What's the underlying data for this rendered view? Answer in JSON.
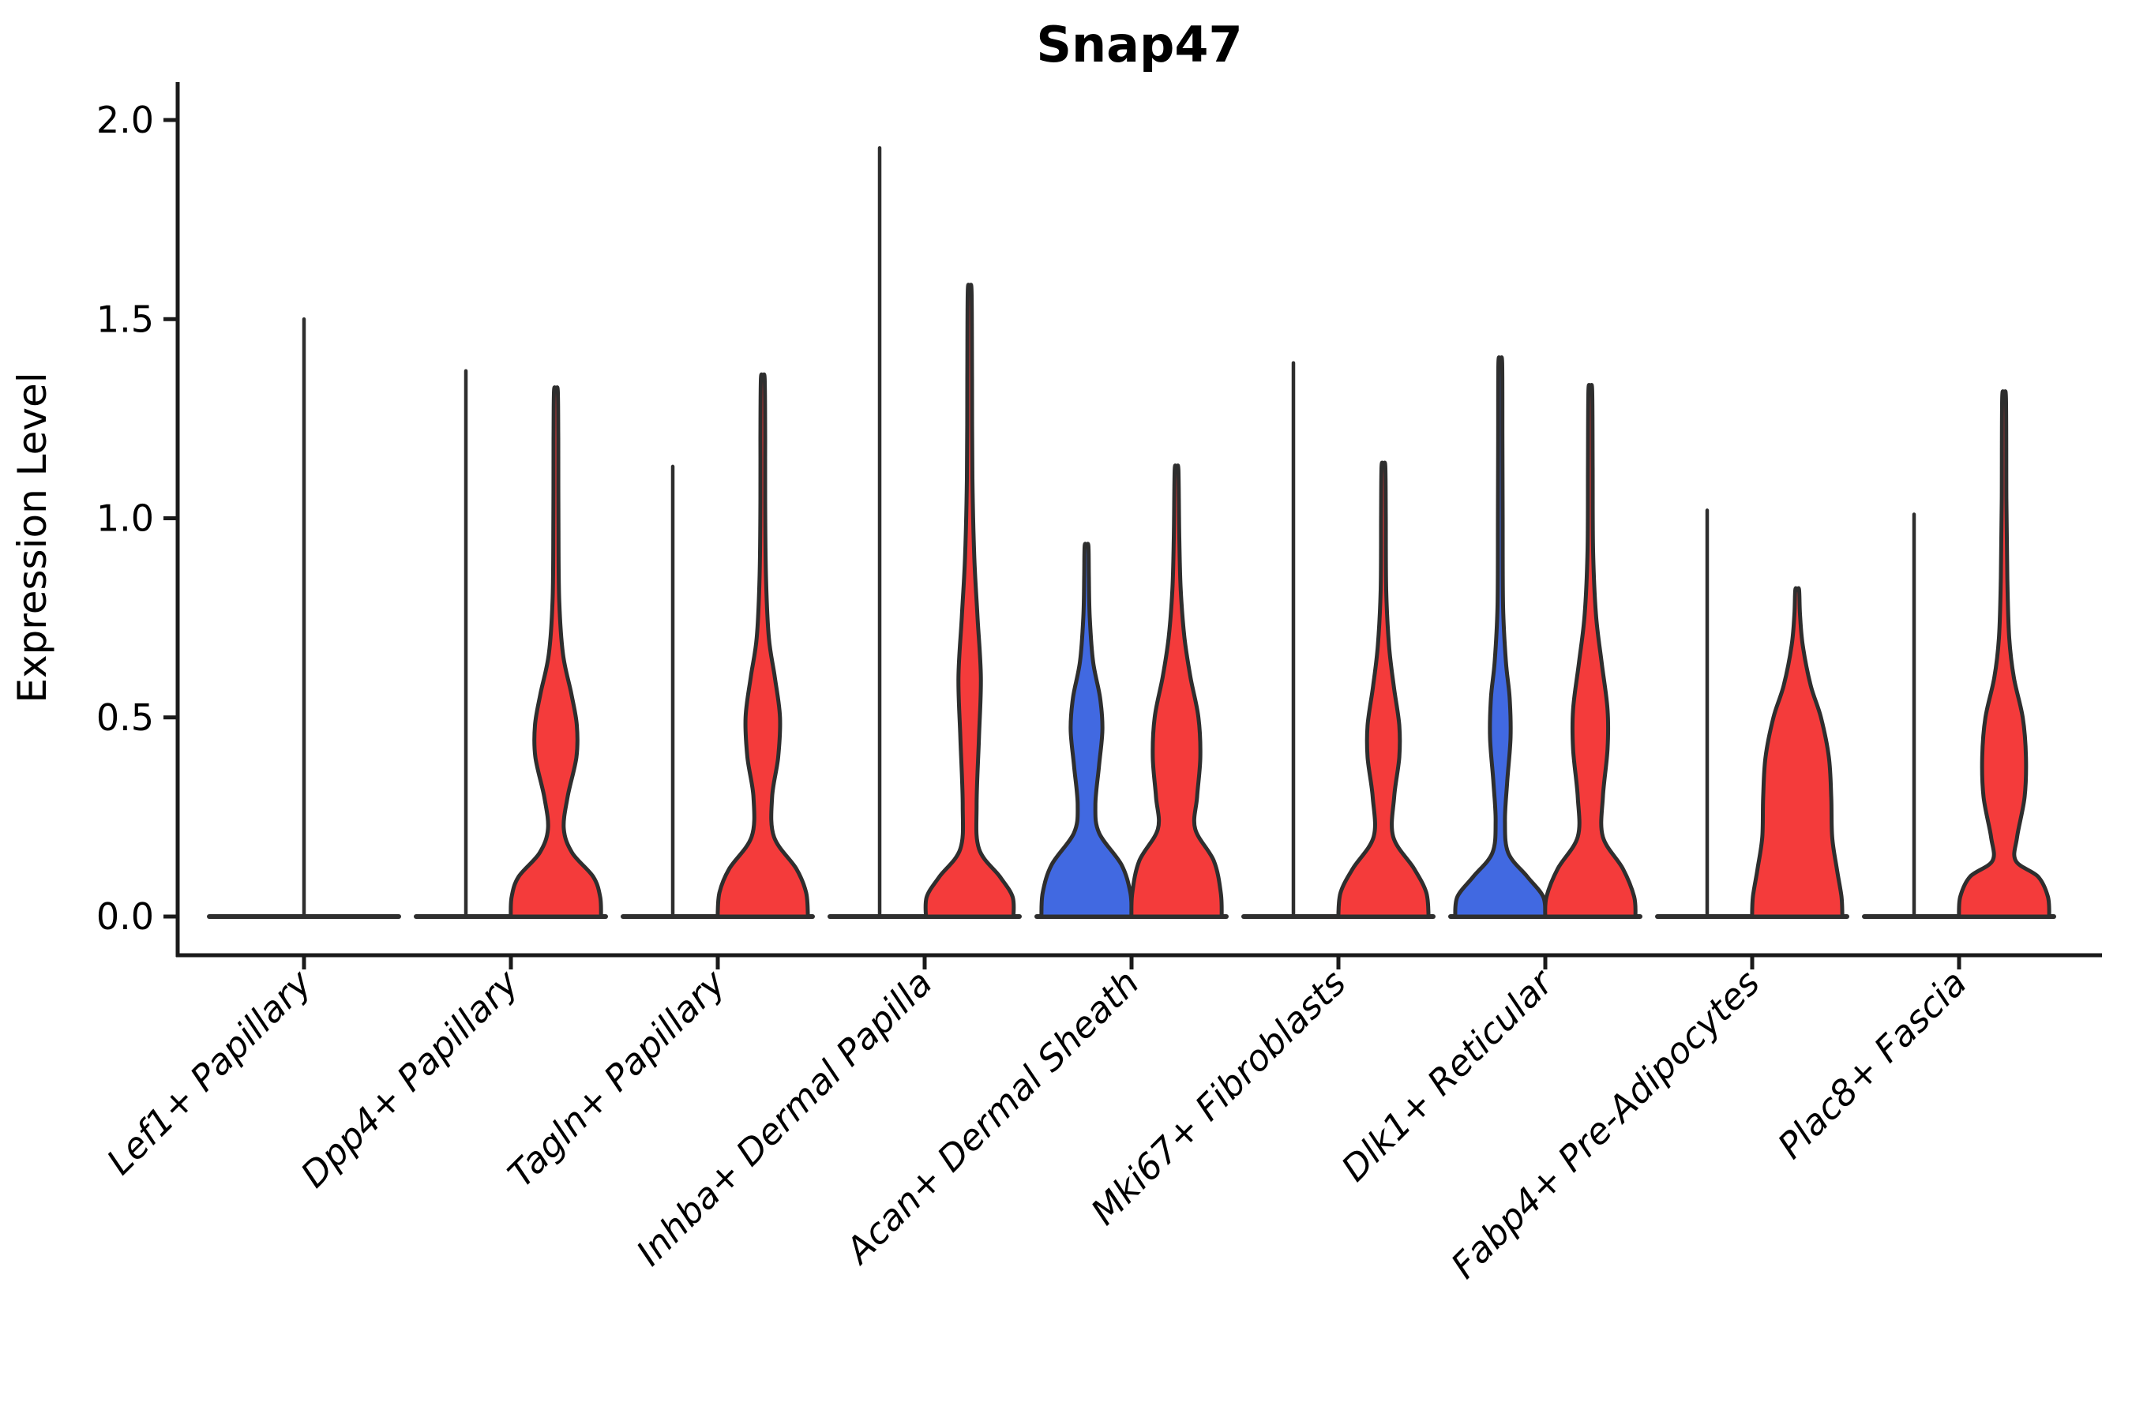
{
  "title": "Snap47",
  "chart_data": {
    "type": "violin",
    "title": "Snap47",
    "ylabel": "Expression Level",
    "ylim": [
      0,
      2.0
    ],
    "grid": false,
    "legend": "none",
    "yticks": [
      {
        "value": 0.0,
        "label": "0.0"
      },
      {
        "value": 0.5,
        "label": "0.5"
      },
      {
        "value": 1.0,
        "label": "1.0"
      },
      {
        "value": 1.5,
        "label": "1.5"
      },
      {
        "value": 2.0,
        "label": "2.0"
      }
    ],
    "colors": {
      "blue": "#4169e1",
      "red": "#f43b3b",
      "outline": "#2e2e2e",
      "axis": "#1a1a1a"
    },
    "series_names": [
      "blue",
      "red"
    ],
    "categories": [
      {
        "label": "Lef1+ Papillary",
        "blue": {
          "kind": "spike",
          "max": 1.5,
          "offset": 0
        },
        "red": {
          "kind": "none"
        }
      },
      {
        "label": "Dpp4+ Papillary",
        "blue": {
          "kind": "spike",
          "max": 1.37,
          "offset": -57
        },
        "red": {
          "kind": "violin",
          "max": 1.32,
          "offset": 57,
          "profile": [
            [
              0,
              0.97
            ],
            [
              0.05,
              0.95
            ],
            [
              0.1,
              0.8
            ],
            [
              0.16,
              0.35
            ],
            [
              0.22,
              0.17
            ],
            [
              0.3,
              0.25
            ],
            [
              0.4,
              0.44
            ],
            [
              0.48,
              0.45
            ],
            [
              0.56,
              0.33
            ],
            [
              0.66,
              0.15
            ],
            [
              0.8,
              0.07
            ],
            [
              1.0,
              0.055
            ],
            [
              1.2,
              0.05
            ],
            [
              1.32,
              0.04
            ]
          ]
        }
      },
      {
        "label": "Tagln+ Papillary",
        "blue": {
          "kind": "spike",
          "max": 1.13,
          "offset": -57
        },
        "red": {
          "kind": "violin",
          "max": 1.35,
          "offset": 57,
          "profile": [
            [
              0,
              0.97
            ],
            [
              0.06,
              0.93
            ],
            [
              0.12,
              0.72
            ],
            [
              0.2,
              0.24
            ],
            [
              0.3,
              0.2
            ],
            [
              0.4,
              0.33
            ],
            [
              0.5,
              0.37
            ],
            [
              0.6,
              0.26
            ],
            [
              0.7,
              0.13
            ],
            [
              0.85,
              0.07
            ],
            [
              1.05,
              0.05
            ],
            [
              1.2,
              0.05
            ],
            [
              1.35,
              0.04
            ]
          ]
        }
      },
      {
        "label": "Inhba+ Dermal Papilla",
        "blue": {
          "kind": "spike",
          "max": 1.93,
          "offset": -57
        },
        "red": {
          "kind": "violin",
          "max": 1.57,
          "offset": 57,
          "profile": [
            [
              0,
              0.94
            ],
            [
              0.05,
              0.92
            ],
            [
              0.1,
              0.65
            ],
            [
              0.17,
              0.2
            ],
            [
              0.28,
              0.15
            ],
            [
              0.45,
              0.2
            ],
            [
              0.6,
              0.24
            ],
            [
              0.75,
              0.17
            ],
            [
              0.9,
              0.1
            ],
            [
              1.1,
              0.06
            ],
            [
              1.35,
              0.05
            ],
            [
              1.57,
              0.04
            ]
          ]
        }
      },
      {
        "label": "Acan+ Dermal Sheath",
        "blue": {
          "kind": "violin",
          "max": 0.93,
          "offset": -57,
          "profile": [
            [
              0,
              0.97
            ],
            [
              0.06,
              0.94
            ],
            [
              0.13,
              0.75
            ],
            [
              0.21,
              0.27
            ],
            [
              0.28,
              0.19
            ],
            [
              0.38,
              0.27
            ],
            [
              0.47,
              0.34
            ],
            [
              0.55,
              0.29
            ],
            [
              0.64,
              0.14
            ],
            [
              0.75,
              0.07
            ],
            [
              0.85,
              0.05
            ],
            [
              0.93,
              0.04
            ]
          ]
        },
        "red": {
          "kind": "violin",
          "max": 1.12,
          "offset": 57,
          "profile": [
            [
              0,
              0.97
            ],
            [
              0.06,
              0.95
            ],
            [
              0.14,
              0.8
            ],
            [
              0.22,
              0.4
            ],
            [
              0.3,
              0.44
            ],
            [
              0.4,
              0.51
            ],
            [
              0.5,
              0.47
            ],
            [
              0.6,
              0.3
            ],
            [
              0.7,
              0.17
            ],
            [
              0.82,
              0.09
            ],
            [
              0.95,
              0.06
            ],
            [
              1.12,
              0.04
            ]
          ]
        }
      },
      {
        "label": "Mki67+ Fibroblasts",
        "blue": {
          "kind": "spike",
          "max": 1.39,
          "offset": -57
        },
        "red": {
          "kind": "violin",
          "max": 1.13,
          "offset": 57,
          "profile": [
            [
              0,
              0.97
            ],
            [
              0.06,
              0.92
            ],
            [
              0.12,
              0.66
            ],
            [
              0.2,
              0.21
            ],
            [
              0.3,
              0.23
            ],
            [
              0.4,
              0.34
            ],
            [
              0.48,
              0.34
            ],
            [
              0.58,
              0.22
            ],
            [
              0.68,
              0.12
            ],
            [
              0.82,
              0.06
            ],
            [
              1.0,
              0.05
            ],
            [
              1.13,
              0.04
            ]
          ]
        }
      },
      {
        "label": "Dlk1+ Reticular",
        "blue": {
          "kind": "violin",
          "max": 1.39,
          "offset": -57,
          "profile": [
            [
              0,
              0.97
            ],
            [
              0.05,
              0.92
            ],
            [
              0.1,
              0.58
            ],
            [
              0.16,
              0.17
            ],
            [
              0.24,
              0.1
            ],
            [
              0.34,
              0.15
            ],
            [
              0.45,
              0.22
            ],
            [
              0.55,
              0.2
            ],
            [
              0.64,
              0.12
            ],
            [
              0.78,
              0.06
            ],
            [
              1.0,
              0.05
            ],
            [
              1.2,
              0.045
            ],
            [
              1.39,
              0.04
            ]
          ]
        },
        "red": {
          "kind": "violin",
          "max": 1.32,
          "offset": 57,
          "profile": [
            [
              0,
              0.97
            ],
            [
              0.05,
              0.94
            ],
            [
              0.12,
              0.7
            ],
            [
              0.2,
              0.27
            ],
            [
              0.3,
              0.27
            ],
            [
              0.42,
              0.37
            ],
            [
              0.52,
              0.37
            ],
            [
              0.64,
              0.24
            ],
            [
              0.76,
              0.12
            ],
            [
              0.92,
              0.06
            ],
            [
              1.12,
              0.05
            ],
            [
              1.32,
              0.04
            ]
          ]
        }
      },
      {
        "label": "Fabp4+ Pre-Adipocytes",
        "blue": {
          "kind": "spike",
          "max": 1.02,
          "offset": -57
        },
        "red": {
          "kind": "violin",
          "max": 0.82,
          "offset": 57,
          "profile": [
            [
              0,
              0.97
            ],
            [
              0.05,
              0.95
            ],
            [
              0.12,
              0.85
            ],
            [
              0.2,
              0.75
            ],
            [
              0.3,
              0.73
            ],
            [
              0.4,
              0.68
            ],
            [
              0.5,
              0.51
            ],
            [
              0.58,
              0.29
            ],
            [
              0.68,
              0.12
            ],
            [
              0.76,
              0.06
            ],
            [
              0.82,
              0.04
            ]
          ]
        }
      },
      {
        "label": "Plac8+ Fascia",
        "blue": {
          "kind": "spike",
          "max": 1.01,
          "offset": -57
        },
        "red": {
          "kind": "violin",
          "max": 1.3,
          "offset": 57,
          "profile": [
            [
              0,
              0.97
            ],
            [
              0.05,
              0.94
            ],
            [
              0.1,
              0.73
            ],
            [
              0.14,
              0.25
            ],
            [
              0.2,
              0.28
            ],
            [
              0.3,
              0.44
            ],
            [
              0.4,
              0.47
            ],
            [
              0.5,
              0.4
            ],
            [
              0.6,
              0.21
            ],
            [
              0.7,
              0.11
            ],
            [
              0.85,
              0.07
            ],
            [
              1.05,
              0.05
            ],
            [
              1.3,
              0.04
            ]
          ]
        }
      }
    ]
  }
}
